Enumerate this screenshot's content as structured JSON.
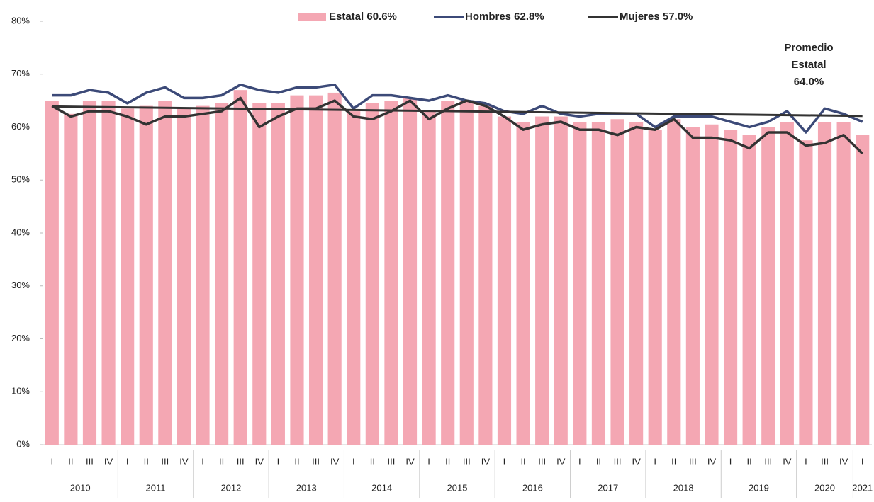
{
  "chart_data": {
    "type": "bar",
    "categories": [
      [
        "2010",
        "I"
      ],
      [
        "2010",
        "II"
      ],
      [
        "2010",
        "III"
      ],
      [
        "2010",
        "IV"
      ],
      [
        "2011",
        "I"
      ],
      [
        "2011",
        "II"
      ],
      [
        "2011",
        "III"
      ],
      [
        "2011",
        "IV"
      ],
      [
        "2012",
        "I"
      ],
      [
        "2012",
        "II"
      ],
      [
        "2012",
        "III"
      ],
      [
        "2012",
        "IV"
      ],
      [
        "2013",
        "I"
      ],
      [
        "2013",
        "II"
      ],
      [
        "2013",
        "III"
      ],
      [
        "2013",
        "IV"
      ],
      [
        "2014",
        "I"
      ],
      [
        "2014",
        "II"
      ],
      [
        "2014",
        "III"
      ],
      [
        "2014",
        "IV"
      ],
      [
        "2015",
        "I"
      ],
      [
        "2015",
        "II"
      ],
      [
        "2015",
        "III"
      ],
      [
        "2015",
        "IV"
      ],
      [
        "2016",
        "I"
      ],
      [
        "2016",
        "II"
      ],
      [
        "2016",
        "III"
      ],
      [
        "2016",
        "IV"
      ],
      [
        "2017",
        "I"
      ],
      [
        "2017",
        "II"
      ],
      [
        "2017",
        "III"
      ],
      [
        "2017",
        "IV"
      ],
      [
        "2018",
        "I"
      ],
      [
        "2018",
        "II"
      ],
      [
        "2018",
        "III"
      ],
      [
        "2018",
        "IV"
      ],
      [
        "2019",
        "I"
      ],
      [
        "2019",
        "II"
      ],
      [
        "2019",
        "III"
      ],
      [
        "2019",
        "IV"
      ],
      [
        "2020",
        "I"
      ],
      [
        "2020",
        "III"
      ],
      [
        "2020",
        "IV"
      ],
      [
        "2021",
        "I"
      ]
    ],
    "series": [
      {
        "name": "Estatal 60.6%",
        "kind": "bar",
        "color": "#f4a7b3",
        "values": [
          65,
          62.5,
          65,
          65,
          63.5,
          64,
          65,
          63.5,
          64,
          64.5,
          67,
          64.5,
          64.5,
          66,
          66,
          66.5,
          63,
          64.5,
          65,
          65.5,
          63,
          65,
          65,
          64,
          62,
          61,
          62,
          62,
          61,
          61,
          61.5,
          61,
          59.5,
          61.5,
          60,
          60.5,
          59.5,
          58.5,
          60,
          61,
          57.5,
          61,
          61,
          58.5
        ]
      },
      {
        "name": "Hombres 62.8%",
        "kind": "line",
        "color": "#3c4a78",
        "values": [
          66,
          66,
          67,
          66.5,
          64.5,
          66.5,
          67.5,
          65.5,
          65.5,
          66,
          68,
          67,
          66.5,
          67.5,
          67.5,
          68,
          63.5,
          66,
          66,
          65.5,
          65,
          66,
          65,
          64.5,
          63,
          62.5,
          64,
          62.5,
          62,
          62.5,
          62.5,
          62.5,
          60,
          62,
          62,
          62,
          61,
          60,
          61,
          63,
          59,
          63.5,
          62.5,
          61
        ]
      },
      {
        "name": "Mujeres 57.0%",
        "kind": "line",
        "color": "#333333",
        "values": [
          64,
          62,
          63,
          63,
          62,
          60.5,
          62,
          62,
          62.5,
          63,
          65.5,
          60,
          62,
          63.5,
          63.5,
          65,
          62,
          61.5,
          63,
          65,
          61.5,
          63.5,
          65,
          64,
          62,
          59.5,
          60.5,
          61,
          59.5,
          59.5,
          58.5,
          60,
          59.5,
          61.5,
          58,
          58,
          57.5,
          56,
          59,
          59,
          56.5,
          57,
          58.5,
          55
        ]
      }
    ],
    "trend": {
      "label": [
        "Promedio",
        "Estatal",
        "64.0%"
      ],
      "start": 63.9,
      "end": 62.1,
      "color": "#333333"
    },
    "ylim": [
      0,
      80
    ],
    "yticks": [
      {
        "value": 0,
        "label": "0%"
      },
      {
        "value": 10,
        "label": "10%"
      },
      {
        "value": 20,
        "label": "20%"
      },
      {
        "value": 30,
        "label": "30%"
      },
      {
        "value": 40,
        "label": "40%"
      },
      {
        "value": 50,
        "label": "50%"
      },
      {
        "value": 60,
        "label": "60%"
      },
      {
        "value": 70,
        "label": "70%"
      },
      {
        "value": 80,
        "label": "80%"
      }
    ],
    "grid": false
  }
}
